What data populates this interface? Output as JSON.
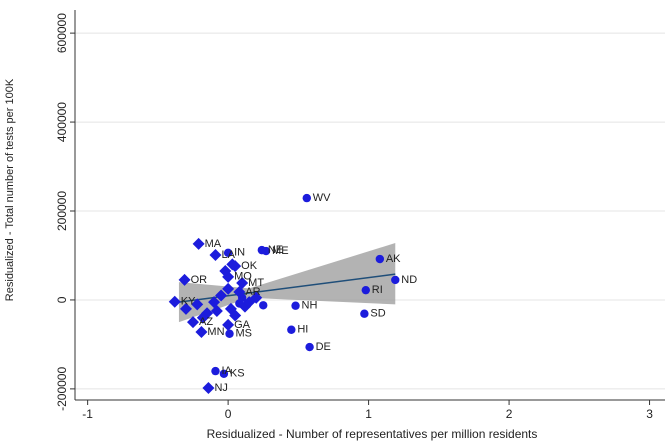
{
  "chart_data": {
    "type": "scatter",
    "x_label": "Residualized - Number of representatives per million residents",
    "y_label": "Residualized - Total number of tests per 100K",
    "xlim": [
      -1.09,
      3.11
    ],
    "ylim": [
      -225000,
      652000
    ],
    "xticks": [
      -1,
      0,
      1,
      2,
      3
    ],
    "yticks": [
      -200000,
      0,
      200000,
      400000,
      600000
    ],
    "grid": true,
    "color": "#1c1cdc",
    "points": {
      "x": [
        0.56,
        1.08,
        1.19,
        0.98,
        0.97,
        0.48,
        0.45,
        0.58,
        -0.21,
        0.0,
        0.24,
        0.27,
        -0.09,
        0.05,
        0.0,
        0.1,
        -0.31,
        0.08,
        -0.38,
        0.0,
        0.01,
        -0.19,
        -0.25,
        -0.09,
        -0.03,
        -0.14,
        -0.3,
        -0.22,
        -0.15,
        -0.1,
        -0.05,
        0.02,
        0.05,
        0.12,
        0.15,
        0.2,
        -0.02,
        0.03,
        -0.18,
        0.08,
        0.25,
        0.1,
        -0.08,
        0.0
      ],
      "y": [
        229000,
        92000,
        45000,
        22000,
        -31000,
        -13000,
        -67000,
        -106000,
        126000,
        106000,
        112000,
        110000,
        101000,
        76000,
        52000,
        38000,
        45000,
        18000,
        -4000,
        -56000,
        -76000,
        -72000,
        -50000,
        -160000,
        -166000,
        -198000,
        -20000,
        -10000,
        -30000,
        -5000,
        10000,
        -20000,
        -35000,
        -15000,
        -5000,
        5000,
        65000,
        80000,
        -40000,
        -8000,
        -12000,
        5000,
        -25000,
        25000
      ],
      "labels": [
        "WV",
        "AK",
        "ND",
        "RI",
        "SD",
        "NH",
        "HI",
        "DE",
        "MA",
        "IN",
        "NE",
        "ME",
        "LA",
        "OK",
        "MO",
        "MT",
        "OR",
        "AR",
        "KY",
        "GA",
        "MS",
        "MN",
        "AZ",
        "IA",
        "KS",
        "NJ",
        null,
        null,
        null,
        null,
        null,
        null,
        null,
        null,
        null,
        null,
        null,
        null,
        null,
        null,
        null,
        null,
        null,
        null
      ],
      "markers": [
        "circle",
        "circle",
        "circle",
        "circle",
        "circle",
        "circle",
        "circle",
        "circle",
        "diamond",
        "circle",
        "circle",
        "circle",
        "diamond",
        "diamond",
        "diamond",
        "diamond",
        "diamond",
        "diamond",
        "diamond",
        "diamond",
        "circle",
        "diamond",
        "diamond",
        "circle",
        "circle",
        "diamond",
        "diamond",
        "diamond",
        "diamond",
        "diamond",
        "diamond",
        "diamond",
        "diamond",
        "diamond",
        "diamond",
        "diamond",
        "diamond",
        "diamond",
        "diamond",
        "circle",
        "circle",
        "circle",
        "diamond",
        "diamond"
      ]
    },
    "fit": {
      "x": [
        -0.35,
        0.15,
        1.19
      ],
      "y": [
        -5000,
        15500,
        58000
      ],
      "ci_low": [
        -50000,
        5000,
        -10000
      ],
      "ci_high": [
        40000,
        26000,
        128000
      ],
      "line_color": "#1f4e79",
      "band_color": "#9a9a9a"
    }
  }
}
